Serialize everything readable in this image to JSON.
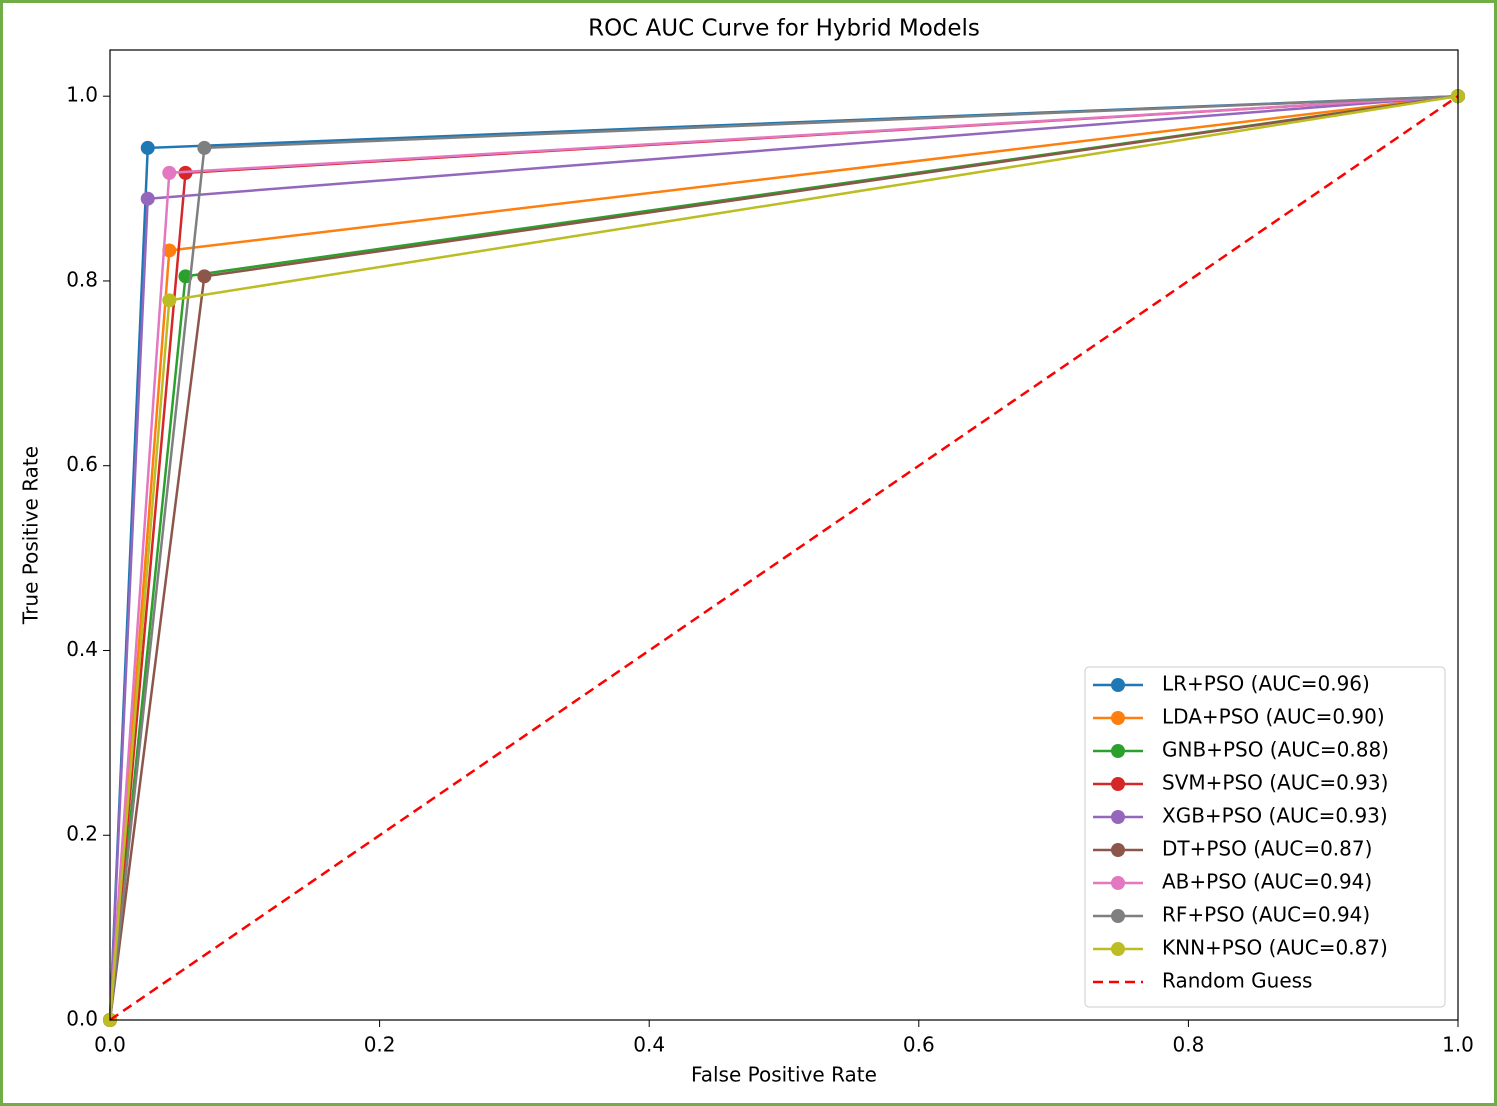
{
  "chart_data": {
    "type": "line",
    "title": "ROC AUC Curve for Hybrid Models",
    "xlabel": "False Positive Rate",
    "ylabel": "True Positive Rate",
    "xlim": [
      0,
      1
    ],
    "ylim": [
      0,
      1.05
    ],
    "xticks": [
      {
        "value": 0,
        "label": "0.0"
      },
      0.2,
      0.4,
      0.6,
      0.8,
      {
        "value": 1,
        "label": "1.0"
      }
    ],
    "yticks": [
      {
        "value": 0,
        "label": "0.0"
      },
      0.2,
      0.4,
      0.6,
      0.8,
      {
        "value": 1,
        "label": "1.0"
      }
    ],
    "legend": "lower right",
    "series": [
      {
        "name": "LR+PSO (AUC=0.96)",
        "color": "#1f77b4",
        "x": [
          0,
          0.028,
          1
        ],
        "values": [
          0,
          0.944,
          1
        ]
      },
      {
        "name": "LDA+PSO (AUC=0.90)",
        "color": "#ff7f0e",
        "x": [
          0,
          0.044,
          1
        ],
        "values": [
          0,
          0.833,
          1
        ]
      },
      {
        "name": "GNB+PSO (AUC=0.88)",
        "color": "#2ca02c",
        "x": [
          0,
          0.056,
          1
        ],
        "values": [
          0,
          0.805,
          1
        ]
      },
      {
        "name": "SVM+PSO (AUC=0.93)",
        "color": "#d62728",
        "x": [
          0,
          0.056,
          1
        ],
        "values": [
          0,
          0.917,
          1
        ]
      },
      {
        "name": "XGB+PSO (AUC=0.93)",
        "color": "#9467bd",
        "x": [
          0,
          0.028,
          1
        ],
        "values": [
          0,
          0.889,
          1
        ]
      },
      {
        "name": "DT+PSO (AUC=0.87)",
        "color": "#8c564b",
        "x": [
          0,
          0.07,
          1
        ],
        "values": [
          0,
          0.805,
          1
        ]
      },
      {
        "name": "AB+PSO (AUC=0.94)",
        "color": "#e377c2",
        "x": [
          0,
          0.044,
          1
        ],
        "values": [
          0,
          0.917,
          1
        ]
      },
      {
        "name": "RF+PSO (AUC=0.94)",
        "color": "#7f7f7f",
        "x": [
          0,
          0.07,
          1
        ],
        "values": [
          0,
          0.944,
          1
        ]
      },
      {
        "name": "KNN+PSO (AUC=0.87)",
        "color": "#bcbd22",
        "x": [
          0,
          0.044,
          1
        ],
        "values": [
          0,
          0.779,
          1
        ]
      },
      {
        "name": "Random Guess",
        "color": "#ff0000",
        "linestyle": "dashed",
        "x": [
          0,
          1
        ],
        "values": [
          0,
          1
        ]
      }
    ]
  }
}
